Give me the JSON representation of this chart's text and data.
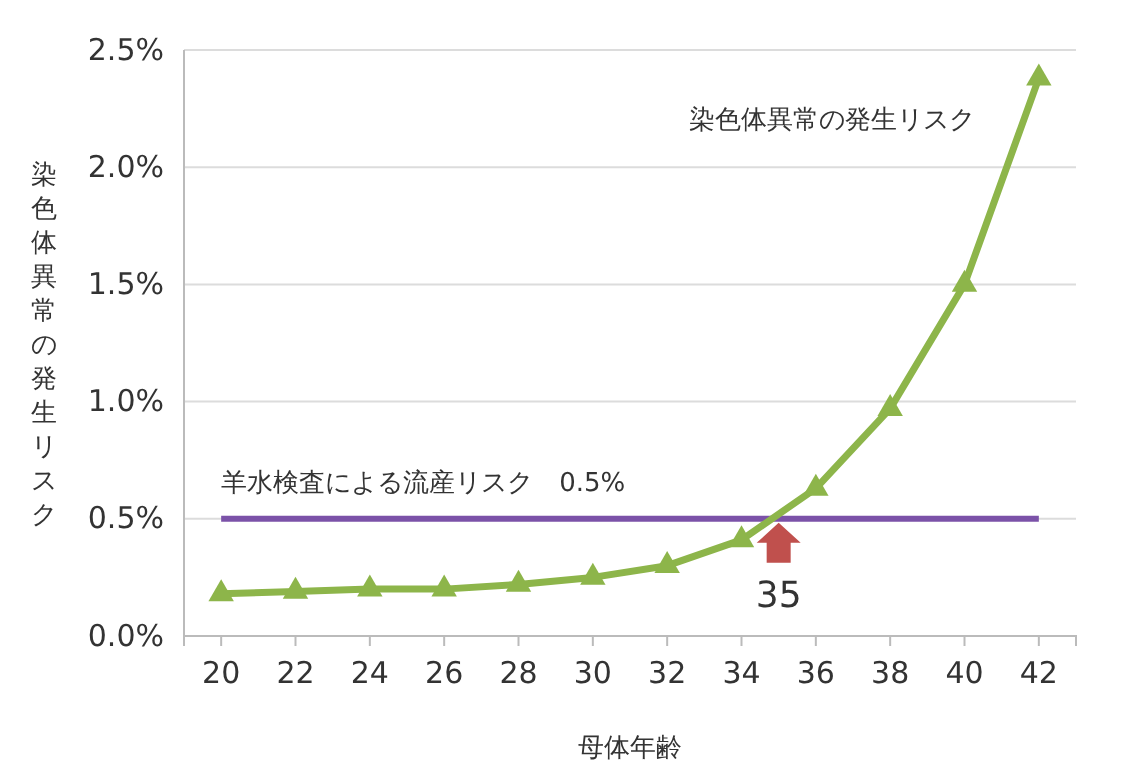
{
  "chart_data": {
    "type": "line",
    "xlabel": "母体年齢",
    "ylabel": "染色体異常の発生リスク",
    "x": [
      20,
      22,
      24,
      26,
      28,
      30,
      32,
      34,
      36,
      38,
      40,
      42
    ],
    "series": [
      {
        "name": "染色体異常の発生リスク",
        "color": "#8db54a",
        "values": [
          0.18,
          0.19,
          0.2,
          0.2,
          0.22,
          0.25,
          0.3,
          0.41,
          0.63,
          0.97,
          1.5,
          2.38
        ]
      }
    ],
    "xlim": [
      19,
      43
    ],
    "xticks": [
      20,
      22,
      24,
      26,
      28,
      30,
      32,
      34,
      36,
      38,
      40,
      42
    ],
    "ylim": [
      0,
      2.5
    ],
    "yticks": [
      {
        "value": 0,
        "label": "0.0%"
      },
      {
        "value": 0.5,
        "label": "0.5%"
      },
      {
        "value": 1,
        "label": "1.0%"
      },
      {
        "value": 1.5,
        "label": "1.5%"
      },
      {
        "value": 2,
        "label": "2.0%"
      },
      {
        "value": 2.5,
        "label": "2.5%"
      }
    ],
    "ref_lines": [
      {
        "axis": "y",
        "value": 0.5,
        "label": "羊水検査による流産リスク　0.5%",
        "color": "#7b52a8"
      }
    ],
    "annotations": [
      {
        "text": "35",
        "x": 35,
        "y": 0.5
      }
    ],
    "grid": "y",
    "marker": "triangle",
    "line_style": "solid"
  }
}
